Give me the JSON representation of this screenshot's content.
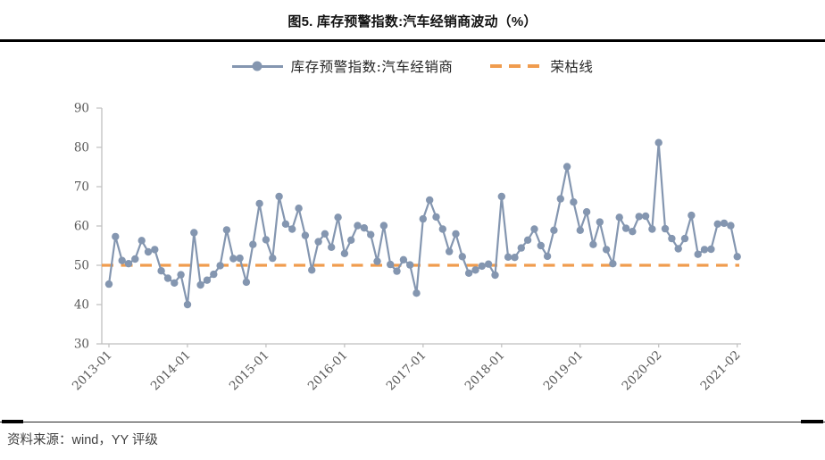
{
  "title": "图5. 库存预警指数:汽车经销商波动（%）",
  "legend": {
    "series_label": "库存预警指数:汽车经销商",
    "threshold_label": "荣枯线"
  },
  "source_note": "资料来源：wind，YY 评级",
  "colors": {
    "series": "#8496B0",
    "threshold": "#F09C4E",
    "axis": "#BFBFBF",
    "axis_text": "#595959"
  },
  "chart_data": {
    "type": "line",
    "title": "图5. 库存预警指数:汽车经销商波动（%）",
    "ylabel": "",
    "xlabel": "",
    "ylim": [
      30,
      90
    ],
    "yticks": [
      30,
      40,
      50,
      60,
      70,
      80,
      90
    ],
    "grid": false,
    "legend_position": "top-center",
    "x": [
      "2013-01",
      "2013-02",
      "2013-03",
      "2013-04",
      "2013-05",
      "2013-06",
      "2013-07",
      "2013-08",
      "2013-09",
      "2013-10",
      "2013-11",
      "2013-12",
      "2014-01",
      "2014-02",
      "2014-03",
      "2014-04",
      "2014-05",
      "2014-06",
      "2014-07",
      "2014-08",
      "2014-09",
      "2014-10",
      "2014-11",
      "2014-12",
      "2015-01",
      "2015-02",
      "2015-03",
      "2015-04",
      "2015-05",
      "2015-06",
      "2015-07",
      "2015-08",
      "2015-09",
      "2015-10",
      "2015-11",
      "2015-12",
      "2016-01",
      "2016-02",
      "2016-03",
      "2016-04",
      "2016-05",
      "2016-06",
      "2016-07",
      "2016-08",
      "2016-09",
      "2016-10",
      "2016-11",
      "2016-12",
      "2017-01",
      "2017-02",
      "2017-03",
      "2017-04",
      "2017-05",
      "2017-06",
      "2017-07",
      "2017-08",
      "2017-09",
      "2017-10",
      "2017-11",
      "2017-12",
      "2018-01",
      "2018-02",
      "2018-03",
      "2018-04",
      "2018-05",
      "2018-06",
      "2018-07",
      "2018-08",
      "2018-09",
      "2018-10",
      "2018-11",
      "2018-12",
      "2019-01",
      "2019-02",
      "2019-03",
      "2019-04",
      "2019-05",
      "2019-06",
      "2019-07",
      "2019-08",
      "2019-09",
      "2019-10",
      "2019-11",
      "2019-12",
      "2020-02",
      "2020-03",
      "2020-04",
      "2020-05",
      "2020-06",
      "2020-07",
      "2020-08",
      "2020-09",
      "2020-10",
      "2020-11",
      "2020-12",
      "2021-01",
      "2021-02"
    ],
    "xtick_indices": [
      0,
      12,
      24,
      36,
      48,
      60,
      72,
      84,
      96
    ],
    "xtick_labels": [
      "2013-01",
      "2014-01",
      "2015-01",
      "2016-01",
      "2017-01",
      "2018-01",
      "2019-01",
      "2020-02",
      "2021-02"
    ],
    "series": [
      {
        "name": "库存预警指数:汽车经销商",
        "color": "#8496B0",
        "style": "solid-with-markers",
        "values": [
          45.2,
          57.3,
          51.2,
          50.4,
          51.6,
          56.3,
          53.4,
          54.0,
          48.6,
          46.7,
          45.5,
          47.6,
          40.0,
          58.3,
          45.0,
          46.2,
          47.7,
          49.9,
          59.0,
          51.7,
          51.8,
          45.7,
          55.3,
          65.7,
          56.5,
          51.8,
          67.5,
          60.5,
          59.2,
          64.5,
          57.6,
          48.8,
          56.0,
          58.0,
          54.6,
          62.2,
          53.0,
          56.4,
          60.1,
          59.5,
          57.8,
          51.0,
          60.1,
          50.2,
          48.5,
          51.4,
          50.1,
          42.9,
          61.8,
          66.6,
          62.3,
          59.2,
          53.5,
          58.0,
          52.2,
          48.0,
          48.8,
          49.8,
          50.3,
          47.5,
          67.5,
          52.1,
          52.0,
          54.4,
          56.4,
          59.2,
          55.0,
          52.3,
          58.9,
          66.9,
          75.1,
          66.1,
          58.9,
          63.6,
          55.3,
          61.0,
          54.0,
          50.4,
          62.2,
          59.4,
          58.6,
          62.4,
          62.5,
          59.2,
          81.2,
          59.3,
          56.8,
          54.2,
          56.8,
          62.7,
          52.8,
          54.0,
          54.1,
          60.5,
          60.7,
          60.1,
          52.2
        ]
      },
      {
        "name": "荣枯线",
        "color": "#F09C4E",
        "style": "dashed",
        "constant": 50
      }
    ]
  }
}
